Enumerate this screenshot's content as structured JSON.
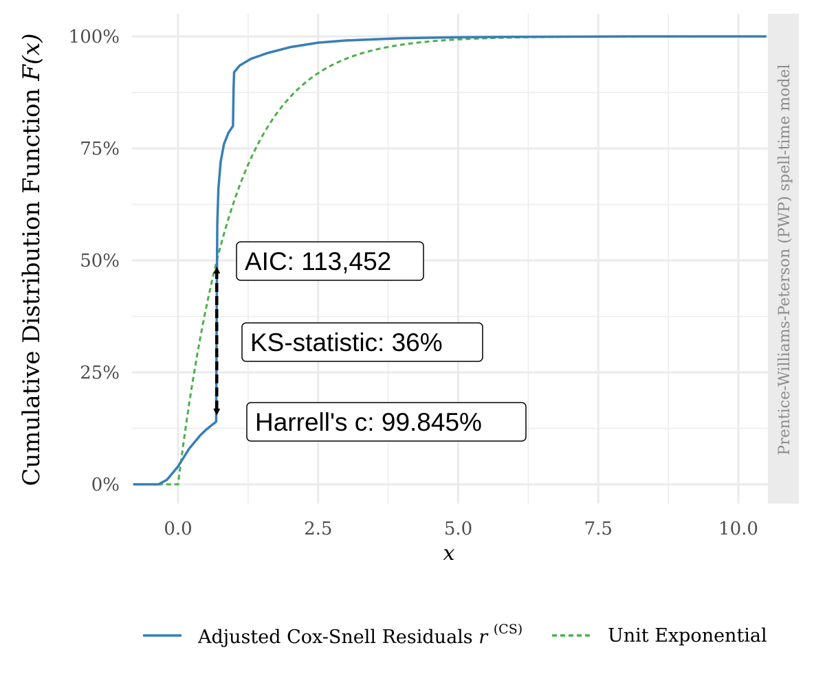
{
  "chart_data": {
    "type": "line",
    "xlabel": "x",
    "ylabel": "Cumulative Distribution Function",
    "ylabel_math": "F(x)",
    "xlim": [
      -0.8,
      10.5
    ],
    "ylim": [
      0,
      1
    ],
    "x_ticks": [
      0.0,
      2.5,
      5.0,
      7.5,
      10.0
    ],
    "x_tick_labels": [
      "0.0",
      "2.5",
      "5.0",
      "7.5",
      "10.0"
    ],
    "y_ticks": [
      0,
      0.25,
      0.5,
      0.75,
      1.0
    ],
    "y_tick_labels": [
      "0%",
      "25%",
      "50%",
      "75%",
      "100%"
    ],
    "grid": true,
    "legend_position": "bottom",
    "facet_label": "Prentice-Williams-Peterson (PWP) spell-time model",
    "series": [
      {
        "name": "Adjusted Cox-Snell Residuals r^(CS)",
        "legend_base": "Adjusted Cox-Snell Residuals ",
        "legend_math": "r",
        "legend_sup": "(CS)",
        "color": "#377eb8",
        "style": "solid",
        "points": [
          [
            -0.8,
            0
          ],
          [
            -0.35,
            0
          ],
          [
            -0.2,
            0.01
          ],
          [
            0,
            0.04
          ],
          [
            0.1,
            0.06
          ],
          [
            0.2,
            0.08
          ],
          [
            0.3,
            0.095
          ],
          [
            0.4,
            0.11
          ],
          [
            0.5,
            0.122
          ],
          [
            0.6,
            0.132
          ],
          [
            0.68,
            0.14
          ],
          [
            0.69,
            0.4
          ],
          [
            0.7,
            0.58
          ],
          [
            0.72,
            0.66
          ],
          [
            0.76,
            0.72
          ],
          [
            0.82,
            0.76
          ],
          [
            0.9,
            0.785
          ],
          [
            0.98,
            0.8
          ],
          [
            0.99,
            0.88
          ],
          [
            1.0,
            0.92
          ],
          [
            1.1,
            0.935
          ],
          [
            1.3,
            0.95
          ],
          [
            1.6,
            0.963
          ],
          [
            2.0,
            0.976
          ],
          [
            2.5,
            0.986
          ],
          [
            3.0,
            0.991
          ],
          [
            4.0,
            0.996
          ],
          [
            5.0,
            0.998
          ],
          [
            6.0,
            0.999
          ],
          [
            8.0,
            1.0
          ],
          [
            10.5,
            1.0
          ]
        ]
      },
      {
        "name": "Unit Exponential",
        "color": "#4daf4a",
        "style": "dashed",
        "function": "1 - exp(-x)"
      }
    ],
    "ks_statistic": {
      "x": 0.69,
      "y_from": 0.14,
      "y_to": 0.5
    }
  },
  "annotations": {
    "aic": "AIC: 113,452",
    "ks": "KS-statistic: 36%",
    "harrell": "Harrell's c: 99.845%"
  }
}
